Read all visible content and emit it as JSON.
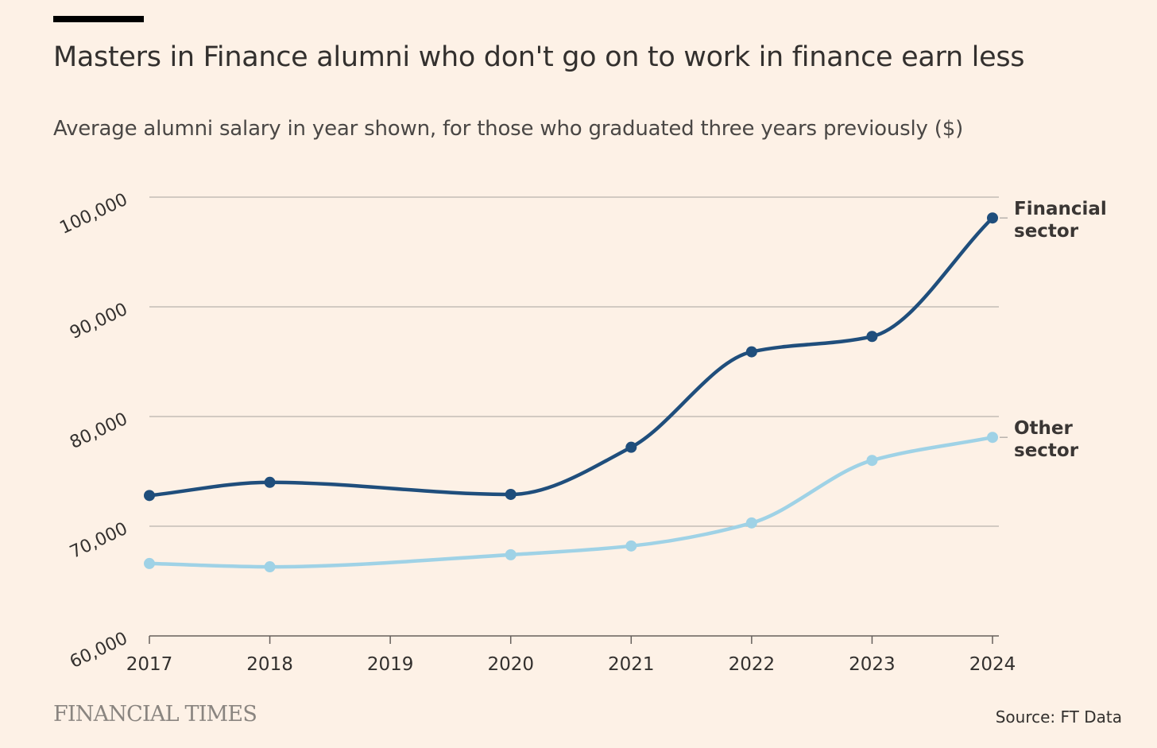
{
  "header": {
    "title": "Masters in Finance alumni who don't go on to work in finance earn less",
    "subtitle": "Average alumni salary in year shown, for those who graduated three years previously ($)"
  },
  "footer": {
    "brand": "FINANCIAL TIMES",
    "source": "Source: FT Data"
  },
  "colors": {
    "background": "#fdf1e6",
    "financial": "#1f4e7c",
    "other": "#9fd2e6",
    "grid": "#b8b3ad",
    "text": "#33302e"
  },
  "chart_data": {
    "type": "line",
    "title": "Masters in Finance alumni who don't go on to work in finance earn less",
    "subtitle": "Average alumni salary in year shown, for those who graduated three years previously ($)",
    "xlabel": "",
    "ylabel": "",
    "x": [
      2017,
      2018,
      2019,
      2020,
      2021,
      2022,
      2023,
      2024
    ],
    "x_ticks": [
      "2017",
      "2018",
      "2019",
      "2020",
      "2021",
      "2022",
      "2023",
      "2024"
    ],
    "y_ticks": [
      60000,
      70000,
      80000,
      90000,
      100000
    ],
    "y_tick_labels": [
      "60,000",
      "70,000",
      "80,000",
      "90,000",
      "100,000"
    ],
    "ylim": [
      60000,
      100000
    ],
    "grid": true,
    "legend": "direct labels at right end of lines",
    "series": [
      {
        "name": "Financial sector",
        "label_lines": [
          "Financial",
          "sector"
        ],
        "color": "#1f4e7c",
        "points": [
          {
            "x": 2017,
            "y": 72800
          },
          {
            "x": 2018,
            "y": 74000
          },
          {
            "x": 2020,
            "y": 72900
          },
          {
            "x": 2021,
            "y": 77200
          },
          {
            "x": 2022,
            "y": 85900
          },
          {
            "x": 2023,
            "y": 87300
          },
          {
            "x": 2024,
            "y": 98100
          }
        ]
      },
      {
        "name": "Other sector",
        "label_lines": [
          "Other",
          "sector"
        ],
        "color": "#9fd2e6",
        "points": [
          {
            "x": 2017,
            "y": 66600
          },
          {
            "x": 2018,
            "y": 66300
          },
          {
            "x": 2020,
            "y": 67400
          },
          {
            "x": 2021,
            "y": 68200
          },
          {
            "x": 2022,
            "y": 70300
          },
          {
            "x": 2023,
            "y": 76000
          },
          {
            "x": 2024,
            "y": 78100
          }
        ]
      }
    ]
  }
}
